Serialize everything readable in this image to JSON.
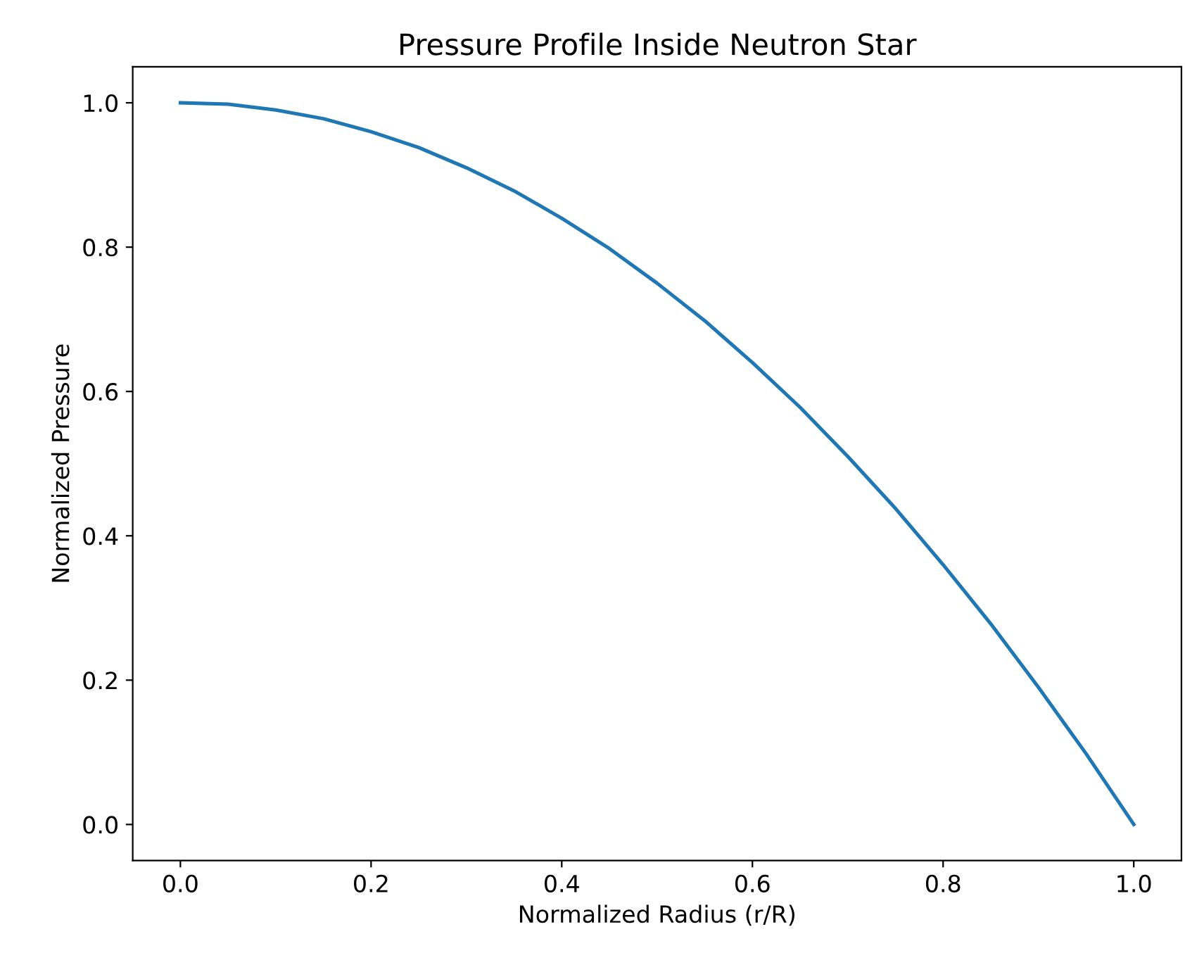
{
  "chart_data": {
    "type": "line",
    "title": "Pressure Profile Inside Neutron Star",
    "xlabel": "Normalized Radius (r/R)",
    "ylabel": "Normalized Pressure",
    "x": [
      0,
      0.05,
      0.1,
      0.15,
      0.2,
      0.25,
      0.3,
      0.35,
      0.4,
      0.45,
      0.5,
      0.55,
      0.6,
      0.65,
      0.7,
      0.75,
      0.8,
      0.85,
      0.9,
      0.95,
      1.0
    ],
    "series": [
      {
        "color": "#1f77b4",
        "values": [
          1.0,
          0.998,
          0.99,
          0.978,
          0.96,
          0.938,
          0.91,
          0.878,
          0.84,
          0.798,
          0.75,
          0.698,
          0.64,
          0.578,
          0.51,
          0.438,
          0.36,
          0.278,
          0.19,
          0.098,
          0.0
        ]
      }
    ],
    "xlim": [
      -0.05,
      1.05
    ],
    "ylim": [
      -0.05,
      1.05
    ],
    "xticks": [
      {
        "value": 0,
        "label": "0.0"
      },
      0.2,
      0.4,
      0.6,
      0.8,
      {
        "value": 1,
        "label": "1.0"
      }
    ],
    "yticks": [
      {
        "value": 0,
        "label": "0.0"
      },
      0.2,
      0.4,
      0.6,
      0.8,
      {
        "value": 1,
        "label": "1.0"
      }
    ],
    "grid": false,
    "legend": false,
    "marker": "none",
    "line_style": "solid"
  }
}
